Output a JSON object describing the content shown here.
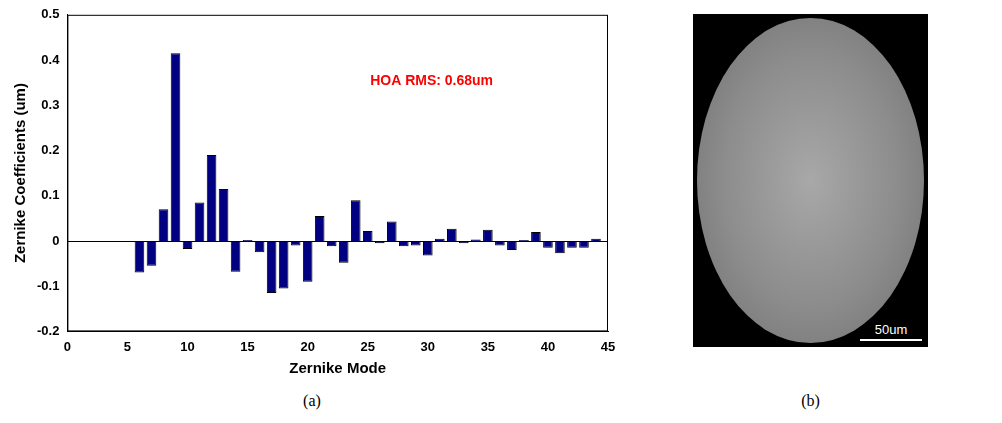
{
  "chart_data": {
    "type": "bar",
    "caption": "(a)",
    "x_label": "Zernike Mode",
    "y_label": "Zernike Coefficients (um)",
    "annotations": [
      "HOA RMS: 0.68um"
    ],
    "x": [
      6,
      7,
      8,
      9,
      10,
      11,
      12,
      13,
      14,
      15,
      16,
      17,
      18,
      19,
      20,
      21,
      22,
      23,
      24,
      25,
      26,
      27,
      28,
      29,
      30,
      31,
      32,
      33,
      34,
      35,
      36,
      37,
      38,
      39,
      40,
      41,
      42,
      43,
      44
    ],
    "values": [
      -0.07,
      -0.055,
      0.07,
      0.415,
      -0.018,
      0.085,
      0.19,
      0.115,
      -0.068,
      0.002,
      -0.025,
      -0.115,
      -0.105,
      -0.01,
      -0.09,
      0.055,
      -0.012,
      -0.048,
      0.09,
      0.022,
      -0.005,
      0.043,
      -0.012,
      -0.01,
      -0.032,
      0.005,
      0.027,
      -0.005,
      0.003,
      0.025,
      -0.01,
      -0.02,
      0.002,
      0.02,
      -0.015,
      -0.027,
      -0.015,
      -0.015,
      0.005
    ],
    "color": "#000080",
    "xlim": [
      0,
      45
    ],
    "xticks": [
      0,
      5,
      10,
      15,
      20,
      25,
      30,
      35,
      40,
      45
    ],
    "ylim": [
      -0.2,
      0.5
    ],
    "yticks": [
      -0.2,
      -0.1,
      0,
      0.1,
      0.2,
      0.3,
      0.4,
      0.5
    ],
    "grid": false
  },
  "image_panel": {
    "caption": "(b)",
    "scale_bar": "50um"
  }
}
